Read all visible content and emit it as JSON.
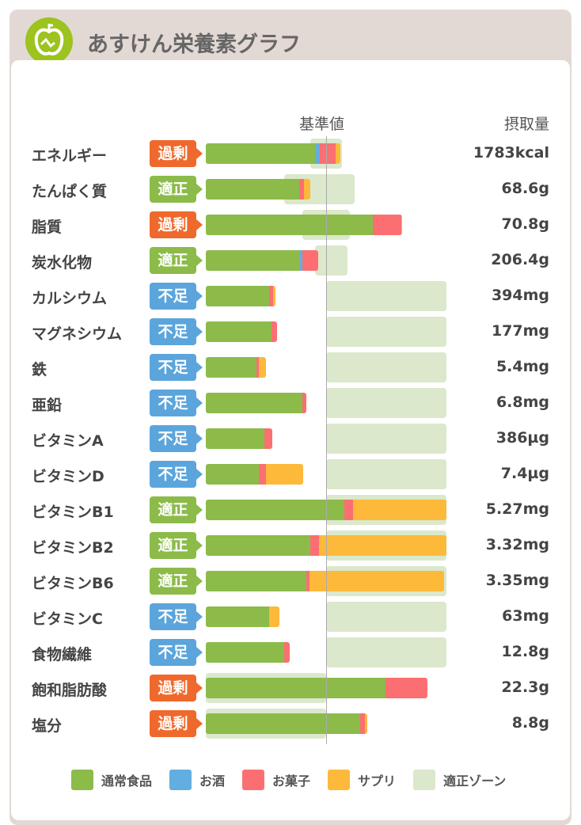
{
  "header": {
    "title": "あすけん栄養素グラフ"
  },
  "colors": {
    "normal": "#8cbb4a",
    "alcohol": "#62aee0",
    "snack": "#fb6f72",
    "supplement": "#fdb93a",
    "zone": "#dbe8cb",
    "excess": "#f0692c",
    "adequate": "#8cbb4a",
    "lack": "#5ba5dc"
  },
  "chart_data": {
    "type": "bar",
    "orientation": "horizontal-stacked",
    "reference_label": "基準値",
    "value_header": "摂取量",
    "unit": "% of reference value",
    "xlim": [
      0,
      200
    ],
    "legend": [
      "通常食品",
      "お酒",
      "お菓子",
      "サプリ",
      "適正ゾーン"
    ],
    "rows": [
      {
        "name": "エネルギー",
        "status": "過剰",
        "st": "excess",
        "value": "1783kcal",
        "segments": [
          90.8,
          3.9,
          13.2,
          3.9
        ],
        "zone": [
          87,
          113
        ]
      },
      {
        "name": "たんぱく質",
        "status": "適正",
        "st": "adequate",
        "value": "68.6g",
        "segments": [
          77.6,
          0,
          3.9,
          5.3
        ],
        "zone": [
          65,
          124
        ]
      },
      {
        "name": "脂質",
        "status": "過剰",
        "st": "excess",
        "value": "70.8g",
        "segments": [
          138.8,
          0,
          23.7,
          0.7
        ],
        "zone": [
          80,
          120
        ]
      },
      {
        "name": "炭水化物",
        "status": "適正",
        "st": "adequate",
        "value": "206.4g",
        "segments": [
          78.3,
          2,
          13.2,
          0
        ],
        "zone": [
          91,
          118
        ]
      },
      {
        "name": "カルシウム",
        "status": "不足",
        "st": "lack",
        "value": "394mg",
        "segments": [
          52.6,
          0,
          3.3,
          2
        ],
        "zone": [
          100,
          200
        ]
      },
      {
        "name": "マグネシウム",
        "status": "不足",
        "st": "lack",
        "value": "177mg",
        "segments": [
          54.6,
          0,
          4.6,
          0
        ],
        "zone": [
          100,
          200
        ]
      },
      {
        "name": "鉄",
        "status": "不足",
        "st": "lack",
        "value": "5.4mg",
        "segments": [
          42.1,
          0,
          2,
          5.9
        ],
        "zone": [
          100,
          200
        ]
      },
      {
        "name": "亜鉛",
        "status": "不足",
        "st": "lack",
        "value": "6.8mg",
        "segments": [
          80.3,
          0,
          3.3,
          0
        ],
        "zone": [
          100,
          200
        ]
      },
      {
        "name": "ビタミンA",
        "status": "不足",
        "st": "lack",
        "value": "386µg",
        "segments": [
          48.7,
          0,
          6.6,
          0
        ],
        "zone": [
          100,
          200
        ]
      },
      {
        "name": "ビタミンD",
        "status": "不足",
        "st": "lack",
        "value": "7.4µg",
        "segments": [
          44.1,
          0,
          5.9,
          30.9
        ],
        "zone": [
          100,
          200
        ]
      },
      {
        "name": "ビタミンB1",
        "status": "適正",
        "st": "adequate",
        "value": "5.27mg",
        "segments": [
          115.1,
          0,
          7.2,
          77.7
        ],
        "zone": [
          100,
          200
        ]
      },
      {
        "name": "ビタミンB2",
        "status": "適正",
        "st": "adequate",
        "value": "3.32mg",
        "segments": [
          86.8,
          0,
          7.2,
          106
        ],
        "zone": [
          100,
          200
        ]
      },
      {
        "name": "ビタミンB6",
        "status": "適正",
        "st": "adequate",
        "value": "3.35mg",
        "segments": [
          83.6,
          0,
          2.6,
          112
        ],
        "zone": [
          100,
          200
        ]
      },
      {
        "name": "ビタミンC",
        "status": "不足",
        "st": "lack",
        "value": "63mg",
        "segments": [
          52.6,
          0,
          0,
          8.6
        ],
        "zone": [
          100,
          200
        ]
      },
      {
        "name": "食物繊維",
        "status": "不足",
        "st": "lack",
        "value": "12.8g",
        "segments": [
          65.1,
          0,
          4.6,
          0
        ],
        "zone": [
          100,
          200
        ]
      },
      {
        "name": "飽和脂肪酸",
        "status": "過剰",
        "st": "excess",
        "value": "22.3g",
        "segments": [
          149.3,
          0,
          34.9,
          0
        ],
        "zone": [
          0,
          100
        ]
      },
      {
        "name": "塩分",
        "status": "過剰",
        "st": "excess",
        "value": "8.8g",
        "segments": [
          128.3,
          0,
          3.9,
          2
        ],
        "zone": [
          0,
          100
        ]
      }
    ]
  }
}
